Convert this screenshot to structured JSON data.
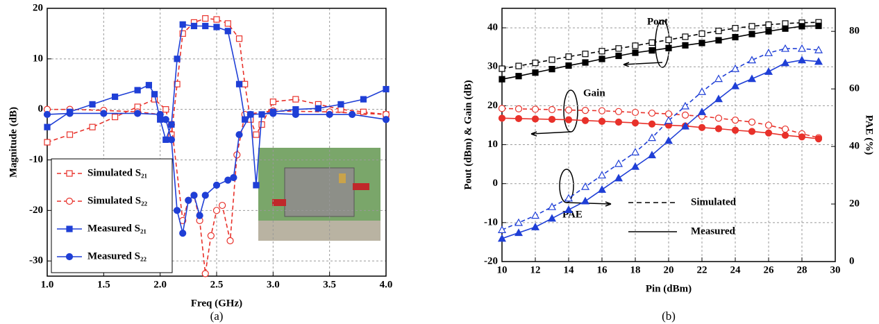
{
  "chart_data": [
    {
      "type": "line",
      "caption": "(a)",
      "x_label": "Freq (GHz)",
      "y_label": "Magnitude (dB)",
      "xlim": [
        1,
        4
      ],
      "ylim": [
        -33,
        20
      ],
      "xticks": [
        {
          "value": 1,
          "label": "1.0"
        },
        {
          "value": 1.5,
          "label": "1.5"
        },
        {
          "value": 2,
          "label": "2.0"
        },
        {
          "value": 2.5,
          "label": "2.5"
        },
        {
          "value": 3,
          "label": "3.0"
        },
        {
          "value": 3.5,
          "label": "3.5"
        },
        {
          "value": 4,
          "label": "4.0"
        }
      ],
      "yticks": [
        20,
        10,
        0,
        -10,
        -20,
        -30
      ],
      "grid": true,
      "legend": "lower-left",
      "series": [
        {
          "name": "Simulated S₂₁",
          "color": "#e8312a",
          "dashed": true,
          "marker": "square",
          "filled": false,
          "x": [
            1.0,
            1.2,
            1.4,
            1.6,
            1.8,
            1.95,
            2.05,
            2.1,
            2.15,
            2.2,
            2.3,
            2.4,
            2.5,
            2.6,
            2.7,
            2.75,
            2.8,
            2.85,
            2.9,
            3.0,
            3.2,
            3.4,
            3.6,
            3.8,
            4.0
          ],
          "values": [
            -6.5,
            -5,
            -3.5,
            -1.5,
            0.5,
            2,
            0,
            -5,
            5,
            15,
            17.2,
            18,
            17.8,
            17,
            14,
            5,
            -2,
            -5,
            -3,
            1.5,
            2,
            1,
            0,
            -0.5,
            -1
          ]
        },
        {
          "name": "Simulated S₂₂",
          "color": "#e8312a",
          "dashed": true,
          "marker": "circle",
          "filled": false,
          "x": [
            1.0,
            1.2,
            1.5,
            1.8,
            2.0,
            2.1,
            2.2,
            2.25,
            2.3,
            2.35,
            2.4,
            2.45,
            2.5,
            2.55,
            2.62,
            2.68,
            2.75,
            3.0,
            3.5,
            4.0
          ],
          "values": [
            0,
            0,
            -0.2,
            -0.5,
            -1,
            -3,
            -22,
            -18,
            -17,
            -22,
            -32.5,
            -25,
            -20,
            -19,
            -26,
            -9,
            -1,
            -0.3,
            -0.5,
            -1
          ]
        },
        {
          "name": "Measured S₂₁",
          "color": "#1f3fd6",
          "dashed": false,
          "marker": "square",
          "filled": true,
          "x": [
            1.0,
            1.2,
            1.4,
            1.6,
            1.8,
            1.9,
            1.95,
            2.0,
            2.05,
            2.1,
            2.15,
            2.2,
            2.3,
            2.4,
            2.5,
            2.6,
            2.7,
            2.75,
            2.8,
            2.85,
            2.9,
            3.0,
            3.2,
            3.4,
            3.6,
            3.8,
            4.0
          ],
          "values": [
            -3.5,
            -0.5,
            1,
            2.5,
            3.8,
            4.8,
            3,
            -2,
            -6,
            -3,
            10,
            16.8,
            16.5,
            16.5,
            16.3,
            15.5,
            5,
            -2,
            -1,
            -15,
            -1,
            -0.5,
            0,
            0.2,
            1,
            2,
            4
          ]
        },
        {
          "name": "Measured S₂₂",
          "color": "#1f3fd6",
          "dashed": false,
          "marker": "circle",
          "filled": true,
          "x": [
            1.0,
            1.2,
            1.5,
            1.8,
            2.0,
            2.05,
            2.1,
            2.15,
            2.2,
            2.25,
            2.3,
            2.35,
            2.4,
            2.5,
            2.6,
            2.65,
            2.7,
            2.8,
            3.0,
            3.2,
            3.5,
            3.7,
            4.0
          ],
          "values": [
            -1,
            -0.8,
            -0.8,
            -0.8,
            -1,
            -2,
            -6,
            -20,
            -24.5,
            -18,
            -17,
            -21,
            -17,
            -15,
            -14,
            -13.5,
            -5,
            -1,
            -0.8,
            -1,
            -1,
            -1,
            -2
          ]
        }
      ]
    },
    {
      "type": "line",
      "caption": "(b)",
      "x_label": "Pin (dBm)",
      "y_label": "Pout (dBm) & Gain (dB)",
      "y2_label": "PAE (%)",
      "xlim": [
        10,
        30
      ],
      "ylim": [
        -20,
        45
      ],
      "y2lim": [
        0,
        88
      ],
      "xticks": [
        10,
        12,
        14,
        16,
        18,
        20,
        22,
        24,
        26,
        28,
        30
      ],
      "yticks": [
        -20,
        -10,
        0,
        10,
        20,
        30,
        40
      ],
      "y2ticks": [
        0,
        20,
        40,
        60,
        80
      ],
      "grid": true,
      "annotations": [
        "Pout",
        "Gain",
        "PAE"
      ],
      "style_legend": [
        {
          "label": "Simulated",
          "dashed": true
        },
        {
          "label": "Measured",
          "dashed": false
        }
      ],
      "x": [
        10,
        11,
        12,
        13,
        14,
        15,
        16,
        17,
        18,
        19,
        20,
        21,
        22,
        23,
        24,
        25,
        26,
        27,
        28,
        29
      ],
      "series": [
        {
          "color": "#000000",
          "dashed": true,
          "marker": "square",
          "filled": false,
          "values": [
            29.5,
            30.2,
            31,
            31.8,
            32.6,
            33.3,
            34,
            34.7,
            35.4,
            36.2,
            36.9,
            37.7,
            38.5,
            39.2,
            39.9,
            40.4,
            40.8,
            41.1,
            41.3,
            41.4
          ]
        },
        {
          "color": "#000000",
          "dashed": false,
          "marker": "square",
          "filled": true,
          "values": [
            26.8,
            27.6,
            28.5,
            29.4,
            30.3,
            31.1,
            32,
            32.8,
            33.6,
            34.2,
            34.8,
            35.5,
            36.1,
            36.8,
            37.6,
            38.4,
            39.1,
            39.8,
            40.4,
            40.5
          ]
        },
        {
          "color": "#e8312a",
          "dashed": true,
          "marker": "circle",
          "filled": false,
          "values": [
            19.3,
            19.2,
            19.1,
            19,
            18.9,
            18.8,
            18.7,
            18.5,
            18.3,
            18.1,
            17.9,
            17.6,
            17.3,
            16.8,
            16.3,
            15.8,
            15,
            14,
            12.8,
            11.8
          ]
        },
        {
          "color": "#e8312a",
          "dashed": false,
          "marker": "circle",
          "filled": true,
          "values": [
            16.8,
            16.7,
            16.6,
            16.5,
            16.4,
            16.2,
            16,
            15.8,
            15.6,
            15.3,
            15,
            14.8,
            14.4,
            14.1,
            13.7,
            13.4,
            13,
            12.4,
            12,
            11.5
          ]
        },
        {
          "color": "#1f3fd6",
          "dashed": true,
          "marker": "triangle",
          "filled": false,
          "axis": "y2",
          "values": [
            11,
            13.5,
            16,
            19,
            22,
            26,
            30,
            34,
            38,
            43,
            49,
            54,
            59,
            63.5,
            67,
            70,
            72.5,
            74,
            74,
            73.5
          ]
        },
        {
          "color": "#1f3fd6",
          "dashed": false,
          "marker": "triangle",
          "filled": true,
          "axis": "y2",
          "values": [
            8,
            10,
            12,
            15,
            18,
            21,
            25,
            29,
            33,
            37,
            42,
            47,
            52,
            56.5,
            61,
            63.5,
            66,
            69,
            70,
            69.5
          ]
        }
      ]
    }
  ]
}
